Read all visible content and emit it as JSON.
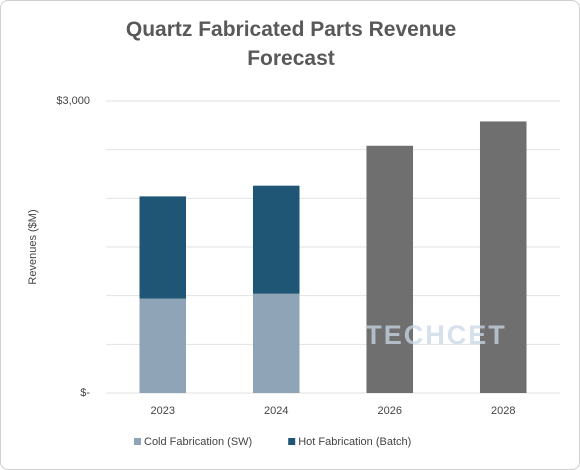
{
  "chart_data": {
    "type": "bar",
    "stacked": true,
    "title": "Quartz Fabricated Parts Revenue Forecast",
    "y_label": "Revenues ($M)",
    "watermark": "TECHCET",
    "categories": [
      "2023",
      "2024",
      "2026",
      "2028"
    ],
    "series": [
      {
        "name": "Cold Fabrication (SW)",
        "color": "#8fa4b6",
        "values": [
          970,
          1020,
          null,
          null
        ]
      },
      {
        "name": "Hot Fabrication (Batch)",
        "color": "#1f5676",
        "values": [
          1050,
          1110,
          null,
          null
        ]
      },
      {
        "color": "#6f6f6f",
        "values": [
          null,
          null,
          2540,
          2790
        ]
      }
    ],
    "ylim": [
      0,
      3000
    ],
    "yticks": [
      {
        "value": 0,
        "label": "$-"
      },
      {
        "value": 3000,
        "label": "$3,000"
      }
    ],
    "ygrid": [
      0,
      500,
      1000,
      1500,
      2000,
      2500,
      3000
    ],
    "grid": true,
    "legend": "bottom"
  }
}
